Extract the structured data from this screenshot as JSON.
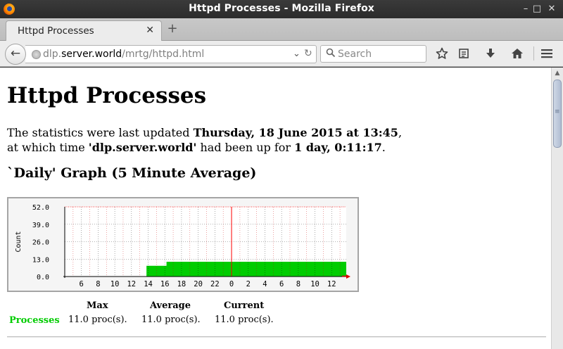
{
  "window": {
    "title": "Httpd Processes - Mozilla Firefox",
    "minimize_glyph": "–",
    "maximize_glyph": "□",
    "close_glyph": "✕"
  },
  "tab": {
    "label": "Httpd Processes",
    "close_glyph": "✕",
    "new_tab_glyph": "+"
  },
  "navbar": {
    "back_glyph": "←",
    "url_prefix": "dlp.",
    "url_host": "server.world",
    "url_path": "/mrtg/httpd.html",
    "dropdown_glyph": "⌄",
    "reload_glyph": "↻",
    "search_placeholder": "Search",
    "icons": [
      "search-icon",
      "bookmark-star-icon",
      "reading-list-icon",
      "download-icon",
      "home-icon",
      "menu-icon"
    ]
  },
  "page": {
    "title": "Httpd Processes",
    "stats_line1_prefix": "The statistics were last updated ",
    "stats_date": "Thursday, 18 June 2015 at 13:45",
    "stats_line1_suffix": ",",
    "stats_line2_prefix": "at which time ",
    "host": "'dlp.server.world'",
    "stats_line2_mid": " had been up for ",
    "uptime": "1 day, 0:11:17",
    "stats_line2_suffix": ".",
    "graph_title": "`Daily' Graph (5 Minute Average)"
  },
  "legend": {
    "headers": [
      "Max",
      "Average",
      "Current"
    ],
    "series_name": "Processes",
    "values": [
      "11.0 proc(s).",
      "11.0 proc(s).",
      "11.0 proc(s)."
    ]
  },
  "chart_data": {
    "type": "area",
    "ylabel": "Count",
    "y_ticks": [
      "52.0",
      "39.0",
      "26.0",
      "13.0",
      "0.0"
    ],
    "ylim": [
      0,
      52
    ],
    "x_tick_labels": [
      "6",
      "8",
      "10",
      "12",
      "14",
      "16",
      "18",
      "20",
      "22",
      "0",
      "2",
      "4",
      "6",
      "8",
      "10",
      "12"
    ],
    "x_hours": [
      6,
      8,
      10,
      12,
      14,
      16,
      18,
      20,
      22,
      24,
      26,
      28,
      30,
      32,
      34,
      36
    ],
    "xlim_hours": [
      4,
      37.75
    ],
    "now_marker_hour": 24,
    "series": [
      {
        "name": "Processes",
        "color": "#00cc00",
        "points": [
          [
            13.8,
            0
          ],
          [
            13.8,
            8
          ],
          [
            16.2,
            8
          ],
          [
            16.2,
            11
          ],
          [
            37.75,
            11
          ]
        ]
      }
    ],
    "grid": true,
    "colors": {
      "grid": "#000000",
      "major_grid": "#ff0000",
      "now_line": "#ff0000"
    }
  }
}
